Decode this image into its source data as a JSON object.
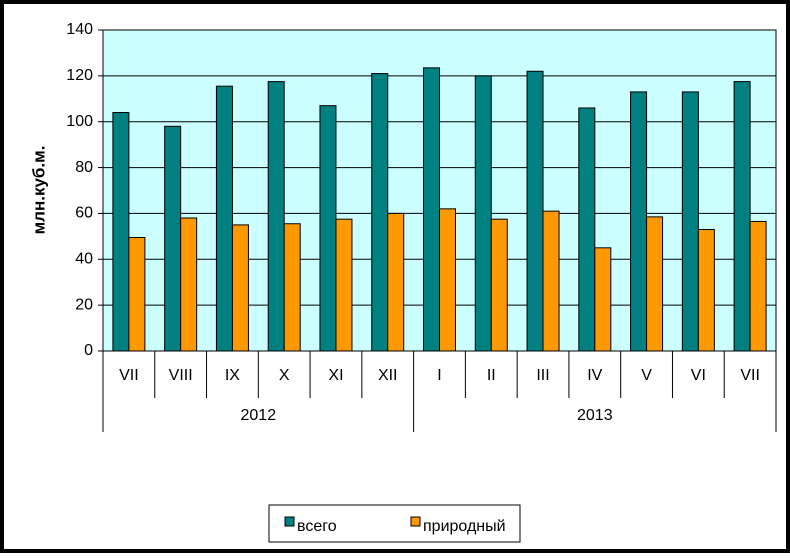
{
  "chart_data": {
    "type": "bar",
    "y_label": "млн.куб.м.",
    "groups": [
      {
        "name": "2012",
        "categories": [
          "VII",
          "VIII",
          "IX",
          "X",
          "XI",
          "XII"
        ]
      },
      {
        "name": "2013",
        "categories": [
          "I",
          "II",
          "III",
          "IV",
          "V",
          "VI",
          "VII"
        ]
      }
    ],
    "series": [
      {
        "name": "всего",
        "color": "#008080",
        "values": [
          104,
          98,
          115.5,
          117.5,
          107,
          121,
          123.5,
          120,
          122,
          106,
          113,
          113,
          117.5
        ]
      },
      {
        "name": "природный",
        "color": "#ff9900",
        "values": [
          49.5,
          58,
          55,
          55.5,
          57.5,
          60,
          62,
          57.5,
          61,
          45,
          58.5,
          53,
          56.5
        ]
      }
    ],
    "ylim": [
      0,
      140
    ],
    "yticks": [
      0,
      20,
      40,
      60,
      80,
      100,
      120,
      140
    ],
    "grid": true,
    "plot_background": "#ccffff",
    "legend": "bottom"
  }
}
